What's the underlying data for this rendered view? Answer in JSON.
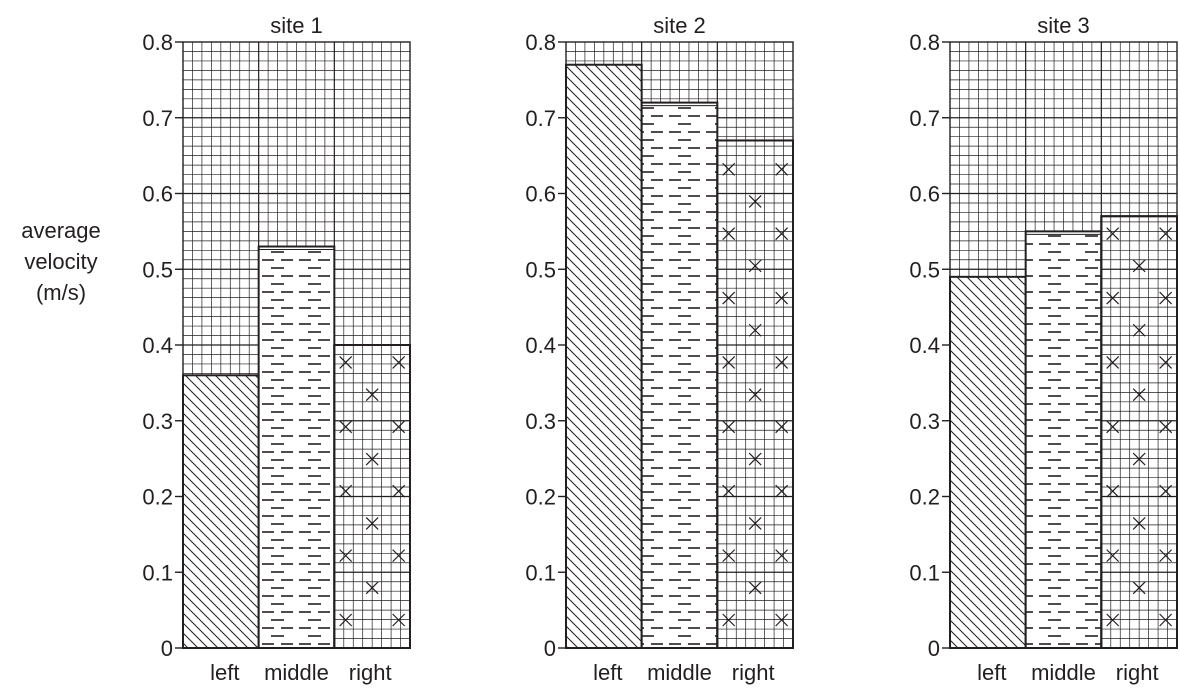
{
  "chart_data": [
    {
      "type": "bar",
      "title": "site 1",
      "categories": [
        "left",
        "middle",
        "right"
      ],
      "values": [
        0.36,
        0.53,
        0.4
      ],
      "ylabel": [
        "average",
        "velocity",
        "(m/s)"
      ],
      "ylim": [
        0,
        0.8
      ],
      "yticks": [
        "0",
        "0.1",
        "0.2",
        "0.3",
        "0.4",
        "0.5",
        "0.6",
        "0.7",
        "0.8"
      ],
      "grid": true
    },
    {
      "type": "bar",
      "title": "site 2",
      "categories": [
        "left",
        "middle",
        "right"
      ],
      "values": [
        0.77,
        0.72,
        0.67
      ],
      "ylim": [
        0,
        0.8
      ],
      "yticks": [
        "0",
        "0.1",
        "0.2",
        "0.3",
        "0.4",
        "0.5",
        "0.6",
        "0.7",
        "0.8"
      ],
      "grid": true
    },
    {
      "type": "bar",
      "title": "site 3",
      "categories": [
        "left",
        "middle",
        "right"
      ],
      "values": [
        0.49,
        0.55,
        0.57
      ],
      "ylim": [
        0,
        0.8
      ],
      "yticks": [
        "0",
        "0.1",
        "0.2",
        "0.3",
        "0.4",
        "0.5",
        "0.6",
        "0.7",
        "0.8"
      ],
      "grid": true
    }
  ],
  "colors": {
    "ink": "#231f20",
    "background": "#ffffff"
  },
  "bar_patterns": [
    "diagonal-hatch",
    "dashes",
    "crosses"
  ]
}
